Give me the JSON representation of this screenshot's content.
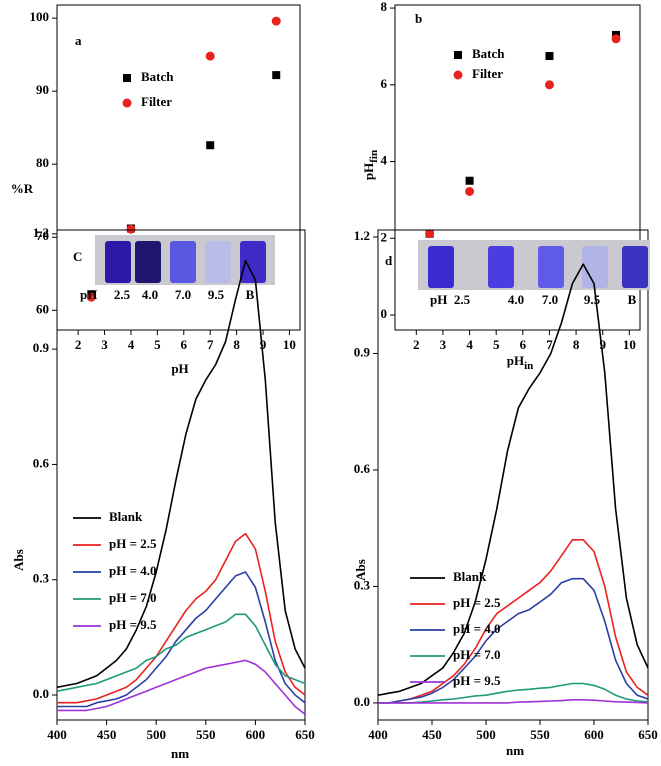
{
  "chart_data": [
    {
      "type": "scatter",
      "panel_label": "a",
      "x_label": "pH",
      "y_label": "%R",
      "xlim": [
        1.2,
        10.4
      ],
      "xticks": [
        2,
        3,
        4,
        5,
        6,
        7,
        8,
        9,
        10
      ],
      "ylim": [
        57.3,
        101.8
      ],
      "yticks": [
        60,
        70,
        80,
        90,
        100
      ],
      "series": [
        {
          "name": "Batch",
          "color": "#000000",
          "marker": "square",
          "x": [
            2.5,
            4,
            7,
            9.5
          ],
          "values": [
            62.2,
            71.2,
            82.6,
            92.2
          ]
        },
        {
          "name": "Filter",
          "color": "#e8231f",
          "marker": "circle",
          "x": [
            2.5,
            4,
            7,
            9.5
          ],
          "values": [
            61.8,
            71.1,
            94.8,
            99.6
          ]
        }
      ]
    },
    {
      "type": "scatter",
      "panel_label": "b",
      "x_label": "pH",
      "x_label_sub": "in",
      "y_label": "pH",
      "y_label_sub": "fin",
      "xlim": [
        1.2,
        10.4
      ],
      "xticks": [
        2,
        3,
        4,
        5,
        6,
        7,
        8,
        9,
        10
      ],
      "ylim": [
        -0.39,
        8.08
      ],
      "yticks": [
        0,
        2,
        4,
        6,
        8
      ],
      "series": [
        {
          "name": "Batch",
          "color": "#000000",
          "marker": "square",
          "x": [
            2.5,
            4,
            7,
            9.5
          ],
          "values": [
            2.12,
            3.5,
            6.75,
            7.3
          ]
        },
        {
          "name": "Filter",
          "color": "#e8231f",
          "marker": "circle",
          "x": [
            2.5,
            4,
            7,
            9.5
          ],
          "values": [
            2.12,
            3.22,
            6.0,
            7.2
          ]
        }
      ]
    },
    {
      "type": "line",
      "panel_label": "C",
      "x_label": "nm",
      "y_label": "Abs",
      "inset_labels": [
        "pH",
        "2.5",
        "4.0",
        "7.0",
        "9.5",
        "B"
      ],
      "xlim": [
        400,
        650
      ],
      "xticks": [
        400,
        450,
        500,
        550,
        600,
        650
      ],
      "ylim": [
        -0.065,
        1.21
      ],
      "yticks": [
        {
          "value": 0,
          "label": "0.0"
        },
        0.3,
        0.6,
        0.9,
        1.2
      ],
      "x": [
        400,
        410,
        420,
        430,
        440,
        450,
        460,
        470,
        480,
        490,
        500,
        510,
        520,
        530,
        540,
        550,
        560,
        570,
        580,
        590,
        600,
        610,
        620,
        630,
        640,
        650
      ],
      "series": [
        {
          "name": "Blank",
          "color": "#000000",
          "values": [
            0.02,
            0.025,
            0.03,
            0.04,
            0.05,
            0.07,
            0.09,
            0.12,
            0.17,
            0.23,
            0.32,
            0.43,
            0.56,
            0.68,
            0.77,
            0.82,
            0.86,
            0.92,
            1.03,
            1.13,
            1.08,
            0.82,
            0.45,
            0.22,
            0.12,
            0.07
          ]
        },
        {
          "name": "pH = 2.5",
          "color": "#e8231f",
          "values": [
            -0.02,
            -0.02,
            -0.02,
            -0.015,
            -0.01,
            0,
            0.01,
            0.02,
            0.04,
            0.07,
            0.1,
            0.14,
            0.18,
            0.22,
            0.25,
            0.27,
            0.3,
            0.35,
            0.4,
            0.42,
            0.38,
            0.27,
            0.14,
            0.06,
            0.02,
            0
          ]
        },
        {
          "name": "pH = 4.0",
          "color": "#2a3fa6",
          "values": [
            -0.03,
            -0.03,
            -0.03,
            -0.03,
            -0.02,
            -0.015,
            -0.01,
            0,
            0.02,
            0.04,
            0.07,
            0.1,
            0.14,
            0.17,
            0.2,
            0.22,
            0.25,
            0.28,
            0.31,
            0.32,
            0.28,
            0.19,
            0.09,
            0.03,
            0,
            -0.02
          ]
        },
        {
          "name": "pH = 7.0",
          "color": "#1e9a7a",
          "values": [
            0.01,
            0.015,
            0.02,
            0.025,
            0.03,
            0.04,
            0.05,
            0.06,
            0.07,
            0.09,
            0.1,
            0.12,
            0.13,
            0.15,
            0.16,
            0.17,
            0.18,
            0.19,
            0.21,
            0.21,
            0.18,
            0.13,
            0.08,
            0.05,
            0.04,
            0.03
          ]
        },
        {
          "name": "pH = 9.5",
          "color": "#a030d8",
          "values": [
            -0.04,
            -0.04,
            -0.04,
            -0.04,
            -0.035,
            -0.03,
            -0.02,
            -0.01,
            0,
            0.01,
            0.02,
            0.03,
            0.04,
            0.05,
            0.06,
            0.07,
            0.075,
            0.08,
            0.085,
            0.09,
            0.08,
            0.06,
            0.03,
            0,
            -0.03,
            -0.05
          ]
        }
      ]
    },
    {
      "type": "line",
      "panel_label": "d",
      "x_label": "nm",
      "y_label": "Abs",
      "inset_labels": [
        "pH",
        "2.5",
        "4.0",
        "7.0",
        "9.5",
        "B"
      ],
      "xlim": [
        400,
        650
      ],
      "xticks": [
        400,
        450,
        500,
        550,
        600,
        650
      ],
      "ylim": [
        -0.044,
        1.218
      ],
      "yticks": [
        {
          "value": 0,
          "label": "0.0"
        },
        0.3,
        0.6,
        0.9,
        1.2
      ],
      "x": [
        400,
        410,
        420,
        430,
        440,
        450,
        460,
        470,
        480,
        490,
        500,
        510,
        520,
        530,
        540,
        550,
        560,
        570,
        580,
        590,
        600,
        610,
        620,
        630,
        640,
        650
      ],
      "series": [
        {
          "name": "Blank",
          "color": "#000000",
          "values": [
            0.02,
            0.025,
            0.03,
            0.04,
            0.05,
            0.07,
            0.09,
            0.13,
            0.18,
            0.26,
            0.37,
            0.5,
            0.65,
            0.76,
            0.81,
            0.85,
            0.9,
            0.98,
            1.08,
            1.13,
            1.08,
            0.85,
            0.5,
            0.27,
            0.15,
            0.09
          ]
        },
        {
          "name": "pH = 2.5",
          "color": "#e8231f",
          "values": [
            0,
            0,
            0.005,
            0.01,
            0.02,
            0.03,
            0.05,
            0.07,
            0.1,
            0.14,
            0.19,
            0.23,
            0.25,
            0.27,
            0.29,
            0.31,
            0.34,
            0.38,
            0.42,
            0.42,
            0.39,
            0.3,
            0.17,
            0.08,
            0.04,
            0.02
          ]
        },
        {
          "name": "pH = 4.0",
          "color": "#2a3fa6",
          "values": [
            0,
            0,
            0.005,
            0.01,
            0.015,
            0.025,
            0.04,
            0.06,
            0.09,
            0.12,
            0.16,
            0.19,
            0.21,
            0.23,
            0.24,
            0.26,
            0.28,
            0.31,
            0.32,
            0.32,
            0.29,
            0.21,
            0.11,
            0.05,
            0.02,
            0.01
          ]
        },
        {
          "name": "pH = 7.0",
          "color": "#1e9a7a",
          "values": [
            0,
            0,
            0,
            0,
            0.002,
            0.005,
            0.008,
            0.01,
            0.014,
            0.018,
            0.02,
            0.025,
            0.03,
            0.033,
            0.035,
            0.038,
            0.04,
            0.045,
            0.05,
            0.05,
            0.045,
            0.035,
            0.02,
            0.01,
            0.005,
            0.003
          ]
        },
        {
          "name": "pH = 9.5",
          "color": "#a030d8",
          "values": [
            0,
            0,
            0,
            0,
            0,
            0,
            0,
            0,
            0,
            0,
            0,
            0,
            0,
            0.002,
            0.003,
            0.004,
            0.005,
            0.006,
            0.008,
            0.008,
            0.007,
            0.005,
            0.003,
            0.002,
            0.001,
            0
          ]
        }
      ]
    }
  ]
}
